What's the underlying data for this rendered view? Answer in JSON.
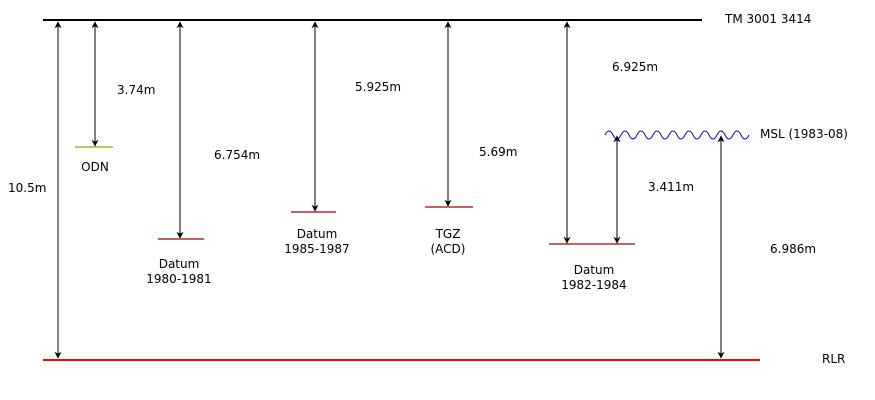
{
  "reference_lines": {
    "top_label": "TM 3001 3414",
    "bottom_label": "RLR",
    "msl_label": "MSL (1983-08)"
  },
  "datums": {
    "odn": {
      "line1": "ODN"
    },
    "d1980": {
      "line1": "Datum",
      "line2": "1980-1981"
    },
    "d1985": {
      "line1": "Datum",
      "line2": "1985-1987"
    },
    "tgz": {
      "line1": "TGZ",
      "line2": "(ACD)"
    },
    "d1982": {
      "line1": "Datum",
      "line2": "1982-1984"
    }
  },
  "measurements": {
    "total": "10.5m",
    "odn": "3.74m",
    "d1980": "6.754m",
    "d1985": "5.925m",
    "tgz": "5.69m",
    "d1982": "6.925m",
    "msl_above_d1982": "3.411m",
    "msl_above_rlr": "6.986m"
  },
  "colors": {
    "top_line": "#000000",
    "rlr_line": "#ff0000",
    "datum_line": "#aa0000",
    "odn_line": "#88aa00",
    "msl_wave": "#0000ee",
    "arrow": "#000000"
  }
}
